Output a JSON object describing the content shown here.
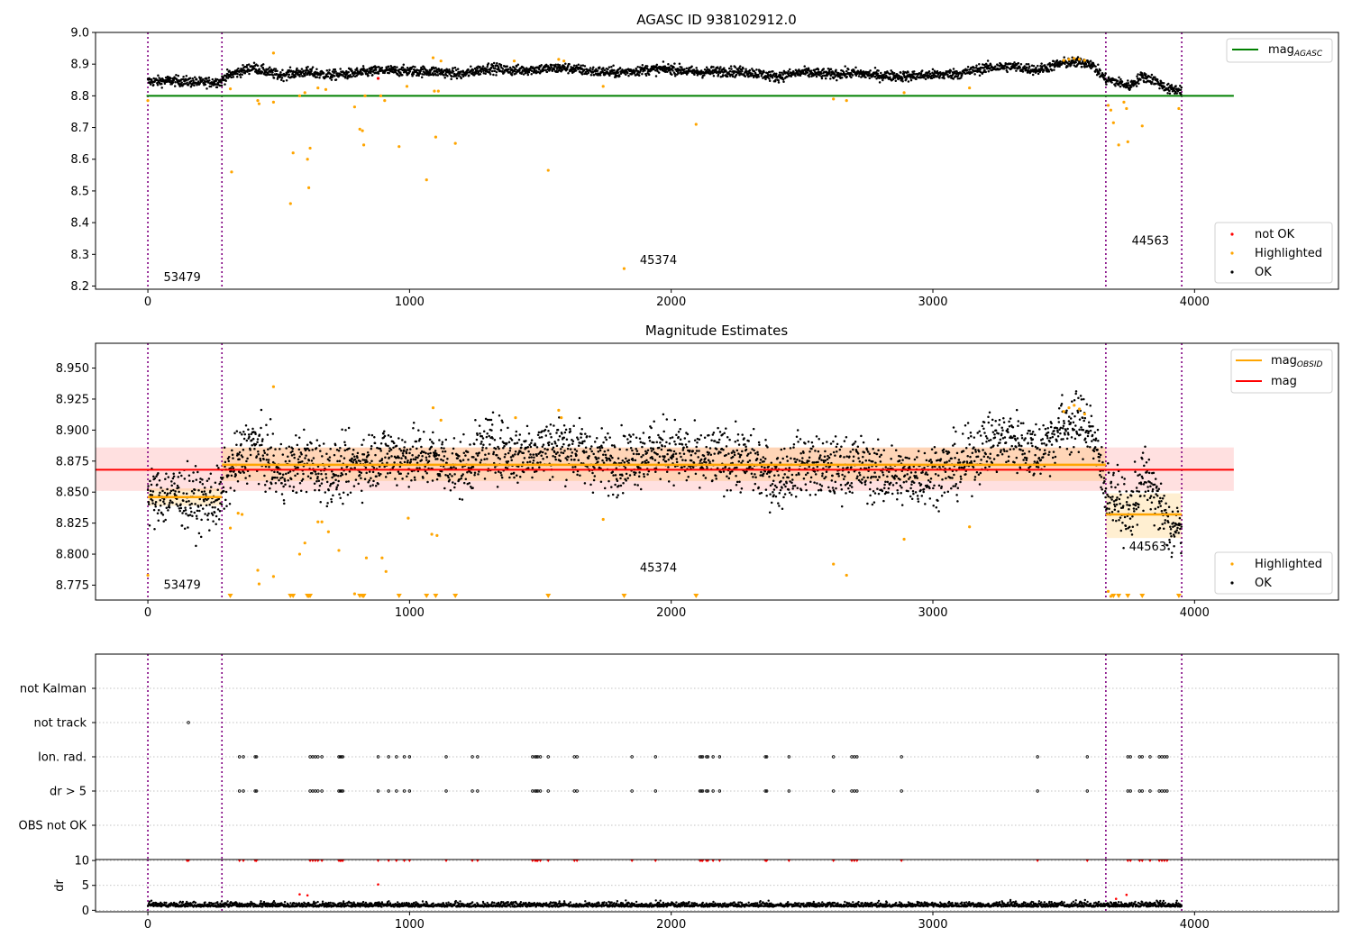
{
  "chart_data": [
    {
      "type": "scatter",
      "title": "AGASC ID 938102912.0",
      "xlabel": "",
      "ylabel": "",
      "xlim": [
        -200,
        4550
      ],
      "ylim": [
        8.19,
        9.0
      ],
      "x_ticks": [
        0,
        1000,
        2000,
        3000,
        4000
      ],
      "y_ticks": [
        9.0,
        8.9,
        8.8,
        8.7,
        8.6,
        8.5,
        8.4,
        8.3,
        8.2
      ],
      "obsid_boundaries": [
        0,
        283,
        3661,
        3951
      ],
      "obsid_labels": [
        {
          "text": "53479",
          "x": 60,
          "y": 8.215
        },
        {
          "text": "45374",
          "x": 1880,
          "y": 8.27
        },
        {
          "text": "44563",
          "x": 3760,
          "y": 8.33
        }
      ],
      "reference_lines": [
        {
          "name": "mag_AGASC",
          "y": 8.8,
          "x_range": [
            -5,
            4150
          ],
          "color": "#008000"
        }
      ],
      "legend_top": {
        "placement": "top-right",
        "entries": [
          {
            "label": "mag",
            "sub": "AGASC",
            "color": "#008000"
          }
        ]
      },
      "legend_bottom": {
        "placement": "bottom-right",
        "entries": [
          {
            "label": "not OK",
            "color": "#ff0000"
          },
          {
            "label": "Highlighted",
            "color": "#ffa500"
          },
          {
            "label": "OK",
            "color": "#000000"
          }
        ]
      },
      "ok_series": {
        "color": "#000000",
        "trend_x": [
          0,
          100,
          200,
          280,
          300,
          400,
          500,
          600,
          700,
          800,
          900,
          1000,
          1100,
          1200,
          1300,
          1400,
          1500,
          1600,
          1700,
          1800,
          1900,
          2000,
          2100,
          2200,
          2300,
          2400,
          2500,
          2600,
          2700,
          2800,
          2900,
          3000,
          3100,
          3200,
          3300,
          3400,
          3500,
          3600,
          3660,
          3700,
          3750,
          3800,
          3850,
          3900,
          3950
        ],
        "trend_y": [
          8.845,
          8.848,
          8.842,
          8.845,
          8.862,
          8.89,
          8.865,
          8.875,
          8.865,
          8.872,
          8.88,
          8.878,
          8.877,
          8.868,
          8.888,
          8.88,
          8.885,
          8.888,
          8.877,
          8.874,
          8.882,
          8.885,
          8.874,
          8.878,
          8.875,
          8.86,
          8.874,
          8.868,
          8.872,
          8.864,
          8.862,
          8.866,
          8.87,
          8.888,
          8.893,
          8.882,
          8.904,
          8.905,
          8.852,
          8.845,
          8.83,
          8.862,
          8.848,
          8.82,
          8.82
        ],
        "scatter_spread": 0.008
      },
      "highlighted_points": [
        {
          "x": 0,
          "y": 8.785
        },
        {
          "x": 315,
          "y": 8.822
        },
        {
          "x": 320,
          "y": 8.56
        },
        {
          "x": 420,
          "y": 8.785
        },
        {
          "x": 425,
          "y": 8.775
        },
        {
          "x": 480,
          "y": 8.935
        },
        {
          "x": 480,
          "y": 8.78
        },
        {
          "x": 545,
          "y": 8.46
        },
        {
          "x": 555,
          "y": 8.62
        },
        {
          "x": 580,
          "y": 8.8
        },
        {
          "x": 600,
          "y": 8.81
        },
        {
          "x": 610,
          "y": 8.6
        },
        {
          "x": 615,
          "y": 8.51
        },
        {
          "x": 620,
          "y": 8.635
        },
        {
          "x": 650,
          "y": 8.825
        },
        {
          "x": 680,
          "y": 8.82
        },
        {
          "x": 790,
          "y": 8.765
        },
        {
          "x": 810,
          "y": 8.695
        },
        {
          "x": 820,
          "y": 8.69
        },
        {
          "x": 825,
          "y": 8.645
        },
        {
          "x": 830,
          "y": 8.8
        },
        {
          "x": 890,
          "y": 8.8
        },
        {
          "x": 905,
          "y": 8.785
        },
        {
          "x": 960,
          "y": 8.64
        },
        {
          "x": 990,
          "y": 8.83
        },
        {
          "x": 1065,
          "y": 8.535
        },
        {
          "x": 1090,
          "y": 8.92
        },
        {
          "x": 1095,
          "y": 8.815
        },
        {
          "x": 1100,
          "y": 8.67
        },
        {
          "x": 1110,
          "y": 8.815
        },
        {
          "x": 1120,
          "y": 8.91
        },
        {
          "x": 1175,
          "y": 8.65
        },
        {
          "x": 1400,
          "y": 8.91
        },
        {
          "x": 1530,
          "y": 8.565
        },
        {
          "x": 1570,
          "y": 8.915
        },
        {
          "x": 1590,
          "y": 8.91
        },
        {
          "x": 1740,
          "y": 8.83
        },
        {
          "x": 1820,
          "y": 8.255
        },
        {
          "x": 2095,
          "y": 8.71
        },
        {
          "x": 2620,
          "y": 8.79
        },
        {
          "x": 2670,
          "y": 8.785
        },
        {
          "x": 2890,
          "y": 8.81
        },
        {
          "x": 3140,
          "y": 8.825
        },
        {
          "x": 3500,
          "y": 8.912
        },
        {
          "x": 3520,
          "y": 8.915
        },
        {
          "x": 3540,
          "y": 8.918
        },
        {
          "x": 3560,
          "y": 8.915
        },
        {
          "x": 3580,
          "y": 8.912
        },
        {
          "x": 3670,
          "y": 8.77
        },
        {
          "x": 3680,
          "y": 8.755
        },
        {
          "x": 3690,
          "y": 8.715
        },
        {
          "x": 3710,
          "y": 8.645
        },
        {
          "x": 3730,
          "y": 8.78
        },
        {
          "x": 3740,
          "y": 8.76
        },
        {
          "x": 3745,
          "y": 8.655
        },
        {
          "x": 3800,
          "y": 8.705
        },
        {
          "x": 3940,
          "y": 8.76
        }
      ],
      "not_ok_points": [
        {
          "x": 880,
          "y": 8.855
        }
      ]
    },
    {
      "type": "scatter",
      "title": "Magnitude Estimates",
      "xlabel": "",
      "ylabel": "",
      "xlim": [
        -200,
        4550
      ],
      "ylim": [
        8.763,
        8.97
      ],
      "x_ticks": [
        0,
        1000,
        2000,
        3000,
        4000
      ],
      "y_ticks": [
        8.95,
        8.925,
        8.9,
        8.875,
        8.85,
        8.825,
        8.8,
        8.775
      ],
      "obsid_boundaries": [
        0,
        283,
        3661,
        3951
      ],
      "obsid_labels": [
        {
          "text": "53479",
          "x": 60,
          "y": 8.772
        },
        {
          "text": "45374",
          "x": 1880,
          "y": 8.786
        },
        {
          "text": "44563",
          "x": 3750,
          "y": 8.803
        }
      ],
      "mag": {
        "y": 8.868,
        "band": [
          8.851,
          8.886
        ],
        "x_range": [
          -200,
          4150
        ],
        "color": "#ff0000"
      },
      "mag_obsid": [
        {
          "x_range": [
            0,
            283
          ],
          "y": 8.846,
          "band": [
            8.839,
            8.853
          ]
        },
        {
          "x_range": [
            283,
            3661
          ],
          "y": 8.872,
          "band": [
            8.859,
            8.886
          ]
        },
        {
          "x_range": [
            3661,
            3951
          ],
          "y": 8.832,
          "band": [
            8.813,
            8.849
          ]
        }
      ],
      "legend_top": {
        "placement": "top-right",
        "entries": [
          {
            "label": "mag",
            "sub": "OBSID",
            "color": "#ffa500"
          },
          {
            "label": "mag",
            "sub": "",
            "color": "#ff0000"
          }
        ]
      },
      "legend_bottom": {
        "placement": "bottom-right",
        "entries": [
          {
            "label": "Highlighted",
            "color": "#ffa500"
          },
          {
            "label": "OK",
            "color": "#000000"
          }
        ]
      },
      "highlighted_points": [
        {
          "x": 0,
          "y": 8.783
        },
        {
          "x": 315,
          "y": 8.821
        },
        {
          "x": 345,
          "y": 8.833
        },
        {
          "x": 360,
          "y": 8.832
        },
        {
          "x": 420,
          "y": 8.787
        },
        {
          "x": 425,
          "y": 8.776
        },
        {
          "x": 480,
          "y": 8.935
        },
        {
          "x": 480,
          "y": 8.782
        },
        {
          "x": 580,
          "y": 8.8
        },
        {
          "x": 600,
          "y": 8.809
        },
        {
          "x": 650,
          "y": 8.826
        },
        {
          "x": 665,
          "y": 8.826
        },
        {
          "x": 690,
          "y": 8.818
        },
        {
          "x": 730,
          "y": 8.803
        },
        {
          "x": 790,
          "y": 8.768
        },
        {
          "x": 835,
          "y": 8.797
        },
        {
          "x": 895,
          "y": 8.797
        },
        {
          "x": 910,
          "y": 8.786
        },
        {
          "x": 995,
          "y": 8.829
        },
        {
          "x": 1085,
          "y": 8.816
        },
        {
          "x": 1090,
          "y": 8.918
        },
        {
          "x": 1105,
          "y": 8.815
        },
        {
          "x": 1120,
          "y": 8.908
        },
        {
          "x": 1405,
          "y": 8.91
        },
        {
          "x": 1570,
          "y": 8.916
        },
        {
          "x": 1580,
          "y": 8.91
        },
        {
          "x": 1740,
          "y": 8.828
        },
        {
          "x": 2620,
          "y": 8.792
        },
        {
          "x": 2670,
          "y": 8.783
        },
        {
          "x": 2890,
          "y": 8.812
        },
        {
          "x": 3140,
          "y": 8.822
        },
        {
          "x": 3500,
          "y": 8.915
        },
        {
          "x": 3520,
          "y": 8.918
        },
        {
          "x": 3540,
          "y": 8.92
        },
        {
          "x": 3560,
          "y": 8.917
        },
        {
          "x": 3580,
          "y": 8.913
        },
        {
          "x": 3670,
          "y": 8.77
        },
        {
          "x": 3680,
          "y": 8.766
        }
      ],
      "below_range_markers_x": [
        315,
        545,
        555,
        610,
        615,
        620,
        810,
        820,
        825,
        960,
        1065,
        1100,
        1175,
        1530,
        1820,
        2095,
        3690,
        3710,
        3745,
        3800,
        3940
      ]
    },
    {
      "type": "scatter",
      "title": "",
      "xlabel": "",
      "ylabel": "",
      "xlim": [
        -200,
        4550
      ],
      "categories": [
        "not Kalman",
        "not track",
        "Ion. rad.",
        "dr > 5",
        "OBS not OK"
      ],
      "obsid_boundaries": [
        0,
        283,
        3661,
        3951
      ],
      "flag_points": {
        "not track": [
          155
        ],
        "Ion. rad.": [
          350,
          365,
          410,
          415,
          620,
          630,
          640,
          650,
          665,
          730,
          735,
          740,
          745,
          880,
          920,
          950,
          980,
          1000,
          1140,
          1240,
          1260,
          1470,
          1480,
          1485,
          1490,
          1500,
          1530,
          1630,
          1640,
          1850,
          1940,
          2110,
          2115,
          2120,
          2135,
          2140,
          2160,
          2185,
          2360,
          2365,
          2450,
          2620,
          2690,
          2700,
          2710,
          2880,
          3400,
          3590,
          3745,
          3755,
          3790,
          3800,
          3830,
          3865,
          3875,
          3885,
          3895
        ],
        "dr > 5": [
          350,
          365,
          410,
          415,
          620,
          630,
          640,
          650,
          665,
          730,
          735,
          740,
          745,
          880,
          920,
          950,
          980,
          1000,
          1140,
          1240,
          1260,
          1470,
          1480,
          1485,
          1490,
          1500,
          1530,
          1630,
          1640,
          1850,
          1940,
          2110,
          2115,
          2120,
          2135,
          2140,
          2160,
          2185,
          2360,
          2365,
          2450,
          2620,
          2690,
          2700,
          2710,
          2880,
          3400,
          3590,
          3745,
          3755,
          3790,
          3800,
          3830,
          3865,
          3875,
          3885,
          3895
        ]
      }
    },
    {
      "type": "scatter",
      "title": "",
      "xlabel": "",
      "ylabel": "dr",
      "xlim": [
        -200,
        4550
      ],
      "ylim": [
        -0.3,
        10.2
      ],
      "x_ticks": [
        0,
        1000,
        2000,
        3000,
        4000
      ],
      "y_ticks": [
        10,
        5,
        0
      ],
      "obsid_boundaries": [
        0,
        283,
        3661,
        3951
      ],
      "capped_value": 10,
      "capped_points_x": [
        150,
        155,
        350,
        365,
        410,
        415,
        620,
        630,
        640,
        650,
        665,
        730,
        735,
        740,
        745,
        880,
        920,
        950,
        980,
        1000,
        1140,
        1240,
        1260,
        1470,
        1480,
        1485,
        1490,
        1500,
        1530,
        1630,
        1640,
        1850,
        1940,
        2110,
        2115,
        2120,
        2135,
        2140,
        2160,
        2185,
        2360,
        2365,
        2450,
        2620,
        2690,
        2700,
        2710,
        2880,
        3400,
        3590,
        3745,
        3755,
        3790,
        3800,
        3830,
        3865,
        3875,
        3885,
        3895
      ],
      "red_points": [
        {
          "x": 580,
          "y": 3.2
        },
        {
          "x": 610,
          "y": 3.0
        },
        {
          "x": 880,
          "y": 5.2
        },
        {
          "x": 3740,
          "y": 3.1
        },
        {
          "x": 3700,
          "y": 2.3
        }
      ],
      "baseline": {
        "mean": 0.9,
        "spread": 0.45
      }
    }
  ]
}
